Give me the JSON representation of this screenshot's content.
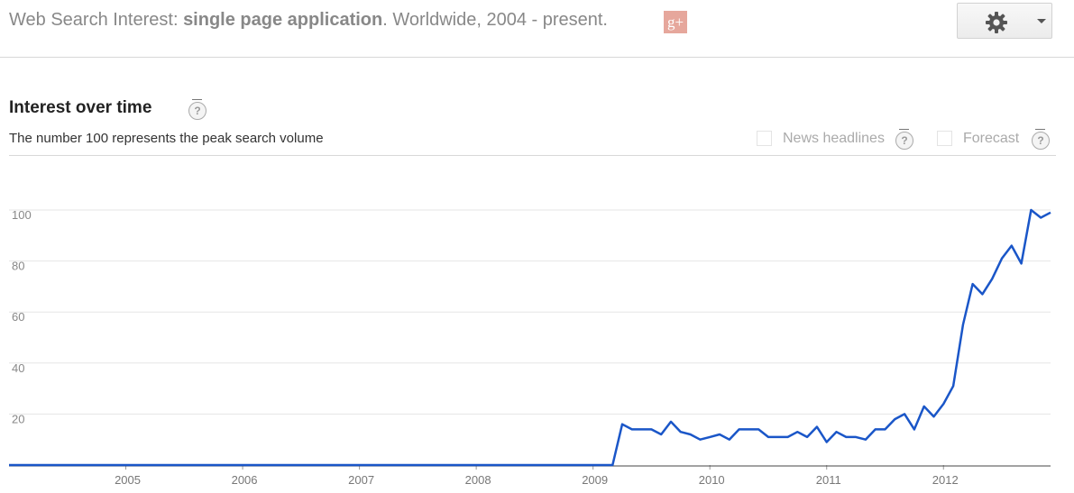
{
  "header": {
    "title_prefix": "Web Search Interest: ",
    "search_term": "single page application",
    "title_suffix": ". Worldwide, 2004 - present.",
    "gplus_label": "g+",
    "settings_icon": "gear-icon"
  },
  "section": {
    "title": "Interest over time",
    "help_symbol": "?",
    "subtitle": "The number 100 represents the peak search volume"
  },
  "options": {
    "news_headlines": {
      "label": "News headlines",
      "checked": false
    },
    "forecast": {
      "label": "Forecast",
      "checked": false
    }
  },
  "colors": {
    "line": "#1a56c8",
    "grid": "#e6e6e6",
    "axis": "#444444"
  },
  "chart_data": {
    "type": "line",
    "title": "Interest over time",
    "xlabel": "",
    "ylabel": "",
    "ylim": [
      0,
      100
    ],
    "xlim": [
      "2004-01",
      "2012-12"
    ],
    "yticks": [
      20,
      40,
      60,
      80,
      100
    ],
    "xticks": [
      "2005",
      "2006",
      "2007",
      "2008",
      "2009",
      "2010",
      "2011",
      "2012"
    ],
    "grid": true,
    "series": [
      {
        "values": [
          0,
          0,
          0,
          0,
          0,
          0,
          0,
          0,
          0,
          0,
          0,
          0,
          0,
          0,
          0,
          0,
          0,
          0,
          0,
          0,
          0,
          0,
          0,
          0,
          0,
          0,
          0,
          0,
          0,
          0,
          0,
          0,
          0,
          0,
          0,
          0,
          0,
          0,
          0,
          0,
          0,
          0,
          0,
          0,
          0,
          0,
          0,
          0,
          0,
          0,
          0,
          0,
          0,
          0,
          0,
          0,
          0,
          0,
          0,
          0,
          0,
          0,
          0,
          16,
          14,
          14,
          14,
          12,
          17,
          13,
          12,
          10,
          11,
          12,
          10,
          14,
          14,
          14,
          11,
          11,
          11,
          13,
          11,
          15,
          9,
          13,
          11,
          11,
          10,
          14,
          14,
          18,
          20,
          14,
          23,
          19,
          24,
          31,
          55,
          71,
          67,
          73,
          81,
          86,
          79,
          100,
          97,
          99
        ]
      }
    ]
  }
}
